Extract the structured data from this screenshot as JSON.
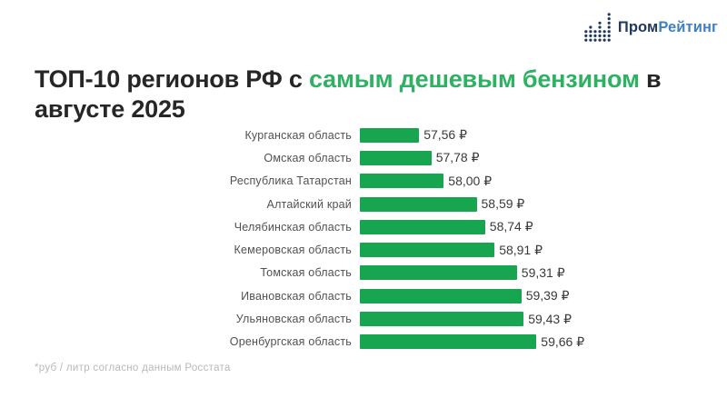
{
  "header": {
    "logo": {
      "icon": "dot-bar-chart-icon",
      "text_primary": "Пром",
      "text_secondary": "Рейтинг"
    }
  },
  "title": {
    "prefix": "ТОП-10 регионов РФ с ",
    "highlight": "самым дешевым бензином",
    "suffix": " в августе 2025"
  },
  "footnote": "*руб / литр согласно данным Росстата",
  "colors": {
    "bar_green": "#17a64f",
    "title_highlight_green": "#2fb164",
    "logo_navy": "#20395c",
    "logo_blue": "#4080c4",
    "label_gray": "#515151",
    "footnote_gray": "#b9b9b9"
  },
  "chart_data": {
    "type": "bar",
    "orientation": "horizontal",
    "title": "ТОП-10 регионов РФ с самым дешевым бензином в августе 2025",
    "unit": "руб / литр",
    "source": "данные Росстата",
    "xlim": [
      56.5,
      60.0
    ],
    "grid": false,
    "legend": false,
    "categories": [
      "Курганская область",
      "Омская область",
      "Республика Татарстан",
      "Алтайский край",
      "Челябинская область",
      "Кемеровская область",
      "Томская область",
      "Ивановская область",
      "Ульяновская область",
      "Оренбургская область"
    ],
    "values": [
      57.56,
      57.78,
      58.0,
      58.59,
      58.74,
      58.91,
      59.31,
      59.39,
      59.43,
      59.66
    ],
    "value_labels": [
      "57,56 ₽",
      "57,78 ₽",
      "58,00 ₽",
      "58,59 ₽",
      "58,74 ₽",
      "58,91 ₽",
      "59,31 ₽",
      "59,39 ₽",
      "59,43 ₽",
      "59,66 ₽"
    ]
  }
}
